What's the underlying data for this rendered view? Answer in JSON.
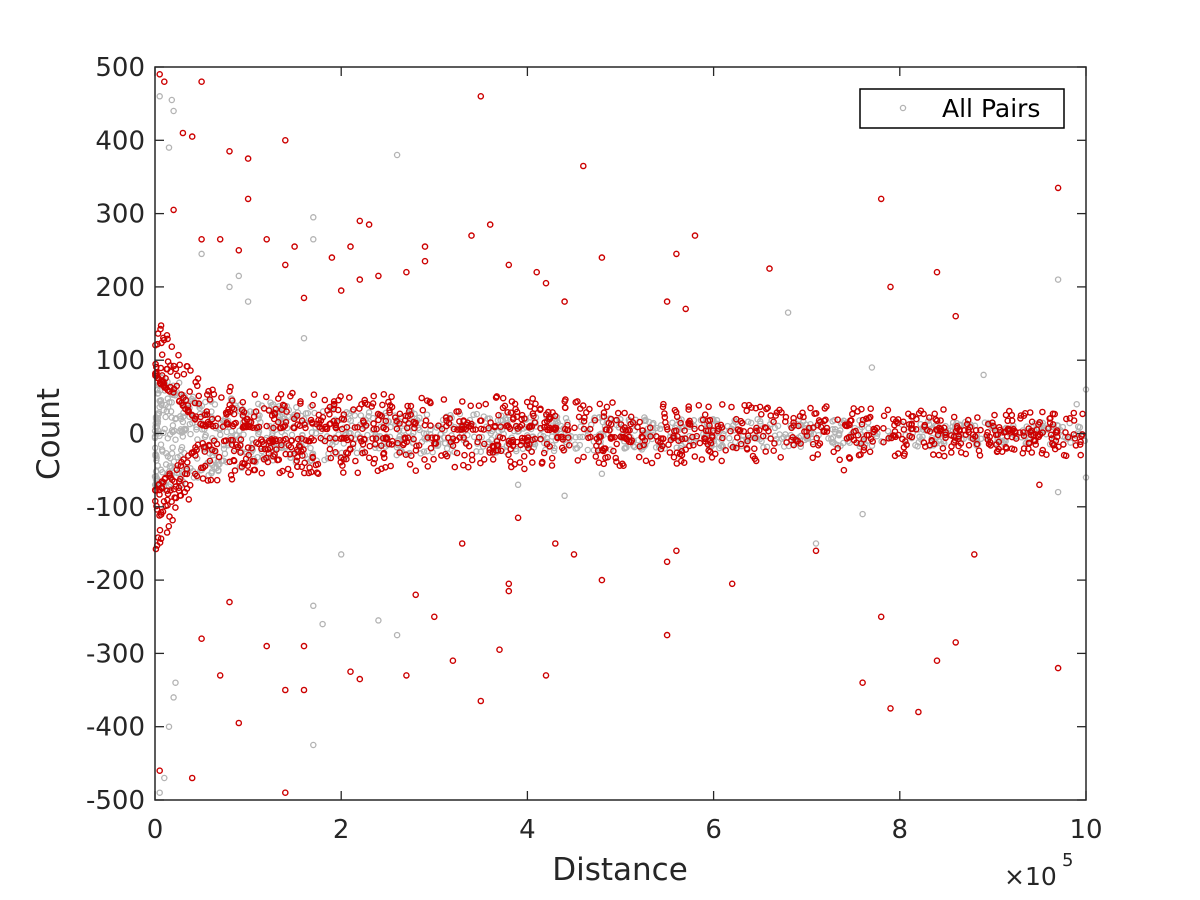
{
  "chart_data": {
    "type": "scatter",
    "xlabel": "Distance",
    "ylabel": "Count",
    "x_multiplier": {
      "base": "×10",
      "exponent": "5"
    },
    "xlim": [
      0,
      10
    ],
    "ylim": [
      -500,
      500
    ],
    "xticks": [
      "0",
      "2",
      "4",
      "6",
      "8",
      "10"
    ],
    "yticks": [
      "500",
      "400",
      "300",
      "200",
      "100",
      "0",
      "-100",
      "-200",
      "-300",
      "-400",
      "-500"
    ],
    "legend": {
      "position": "top-right",
      "entries": [
        {
          "label": "All Pairs",
          "color": "#b3b3b3",
          "marker": "circle"
        }
      ]
    },
    "grid": false,
    "series": [
      {
        "name": "All Pairs",
        "color": "#b3b3b3",
        "marker": "circle",
        "band": {
          "x": [
            0,
            0.2,
            0.5,
            1,
            2,
            3,
            4,
            6,
            8,
            10
          ],
          "y_half_spread": [
            80,
            75,
            60,
            45,
            35,
            28,
            25,
            20,
            18,
            15
          ]
        },
        "points": [
          [
            0.05,
            460
          ],
          [
            0.18,
            455
          ],
          [
            0.2,
            440
          ],
          [
            0.15,
            390
          ],
          [
            0.05,
            -490
          ],
          [
            0.1,
            -470
          ],
          [
            0.15,
            -400
          ],
          [
            0.2,
            -360
          ],
          [
            0.22,
            -340
          ],
          [
            0.5,
            245
          ],
          [
            0.8,
            200
          ],
          [
            0.9,
            215
          ],
          [
            1.0,
            180
          ],
          [
            1.7,
            295
          ],
          [
            1.7,
            265
          ],
          [
            1.6,
            130
          ],
          [
            1.8,
            -260
          ],
          [
            1.7,
            -425
          ],
          [
            1.7,
            -235
          ],
          [
            2.0,
            -165
          ],
          [
            2.6,
            380
          ],
          [
            2.4,
            -255
          ],
          [
            2.6,
            -275
          ],
          [
            3.9,
            -70
          ],
          [
            4.4,
            -85
          ],
          [
            4.8,
            -55
          ],
          [
            6.8,
            165
          ],
          [
            7.1,
            -150
          ],
          [
            7.6,
            -110
          ],
          [
            7.7,
            90
          ],
          [
            8.9,
            80
          ],
          [
            9.7,
            210
          ],
          [
            9.7,
            -80
          ],
          [
            10.0,
            60
          ],
          [
            10.0,
            -60
          ],
          [
            9.9,
            40
          ]
        ]
      },
      {
        "name": "",
        "color": "#cc0000",
        "marker": "circle",
        "band": {
          "x": [
            0,
            0.5,
            1,
            2,
            4,
            6,
            8,
            10
          ],
          "y_inner": [
            75,
            10,
            8,
            6,
            5,
            3,
            2,
            1
          ],
          "y_outer": [
            160,
            70,
            60,
            55,
            50,
            40,
            35,
            30
          ]
        },
        "points": [
          [
            0.05,
            490
          ],
          [
            0.1,
            480
          ],
          [
            0.5,
            480
          ],
          [
            0.3,
            410
          ],
          [
            0.4,
            405
          ],
          [
            1.4,
            400
          ],
          [
            0.8,
            385
          ],
          [
            1.0,
            375
          ],
          [
            0.2,
            305
          ],
          [
            1.0,
            320
          ],
          [
            0.5,
            265
          ],
          [
            0.7,
            265
          ],
          [
            0.9,
            250
          ],
          [
            1.2,
            265
          ],
          [
            1.5,
            255
          ],
          [
            1.4,
            230
          ],
          [
            1.9,
            240
          ],
          [
            2.2,
            290
          ],
          [
            2.3,
            285
          ],
          [
            2.1,
            255
          ],
          [
            2.9,
            255
          ],
          [
            2.9,
            235
          ],
          [
            2.7,
            220
          ],
          [
            2.2,
            210
          ],
          [
            2.4,
            215
          ],
          [
            2.0,
            195
          ],
          [
            1.6,
            185
          ],
          [
            3.5,
            460
          ],
          [
            3.4,
            270
          ],
          [
            3.6,
            285
          ],
          [
            3.8,
            230
          ],
          [
            4.1,
            220
          ],
          [
            4.2,
            205
          ],
          [
            4.4,
            180
          ],
          [
            4.6,
            365
          ],
          [
            4.8,
            240
          ],
          [
            5.5,
            180
          ],
          [
            5.6,
            245
          ],
          [
            5.7,
            170
          ],
          [
            5.8,
            270
          ],
          [
            6.6,
            225
          ],
          [
            7.8,
            320
          ],
          [
            7.9,
            200
          ],
          [
            8.4,
            220
          ],
          [
            8.6,
            160
          ],
          [
            9.7,
            335
          ],
          [
            3.7,
            -295
          ],
          [
            3.5,
            -365
          ],
          [
            3.2,
            -310
          ],
          [
            2.7,
            -330
          ],
          [
            2.2,
            -335
          ],
          [
            2.1,
            -325
          ],
          [
            1.4,
            -350
          ],
          [
            1.6,
            -350
          ],
          [
            1.6,
            -290
          ],
          [
            1.4,
            -490
          ],
          [
            0.4,
            -470
          ],
          [
            0.05,
            -460
          ],
          [
            0.9,
            -395
          ],
          [
            0.5,
            -280
          ],
          [
            0.7,
            -330
          ],
          [
            0.8,
            -230
          ],
          [
            1.2,
            -290
          ],
          [
            2.8,
            -220
          ],
          [
            3.0,
            -250
          ],
          [
            3.3,
            -150
          ],
          [
            3.8,
            -205
          ],
          [
            3.8,
            -215
          ],
          [
            4.2,
            -330
          ],
          [
            4.3,
            -150
          ],
          [
            4.5,
            -165
          ],
          [
            4.8,
            -200
          ],
          [
            5.5,
            -175
          ],
          [
            5.5,
            -275
          ],
          [
            5.6,
            -160
          ],
          [
            6.2,
            -205
          ],
          [
            7.6,
            -340
          ],
          [
            7.8,
            -250
          ],
          [
            7.9,
            -375
          ],
          [
            8.2,
            -380
          ],
          [
            8.4,
            -310
          ],
          [
            8.6,
            -285
          ],
          [
            8.8,
            -165
          ],
          [
            9.7,
            -320
          ],
          [
            7.1,
            -160
          ],
          [
            7.4,
            -50
          ],
          [
            9.5,
            -70
          ],
          [
            3.9,
            -115
          ]
        ]
      }
    ]
  }
}
